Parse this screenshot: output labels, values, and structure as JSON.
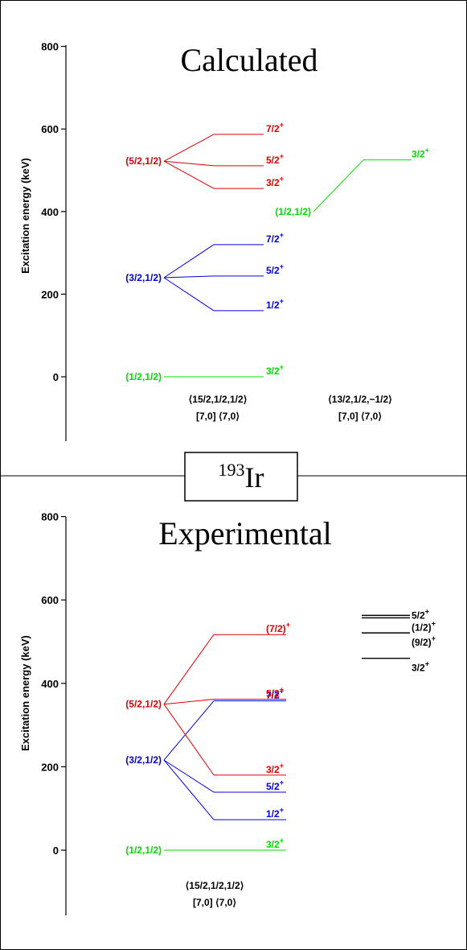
{
  "nucleus": {
    "mass": "193",
    "symbol": "Ir"
  },
  "colors": {
    "red": "#e00000",
    "blue": "#0000e0",
    "green": "#00dd00",
    "black": "#000000"
  },
  "panels": [
    {
      "id": "calculated",
      "title": "Calculated",
      "ylabel": "Excitation energy (keV)",
      "ticks": [
        "0",
        "200",
        "400",
        "600",
        "800"
      ],
      "chart_data": {
        "type": "level-scheme",
        "ylim": [
          -150,
          800
        ],
        "groups": [
          {
            "label": "(1/2,1/2)",
            "color": "green",
            "origin_keV": 0,
            "column": 1,
            "levels": [
              {
                "keV": 0,
                "label": "3/2",
                "sup": "+"
              }
            ]
          },
          {
            "label": "(3/2,1/2)",
            "color": "blue",
            "origin_keV": 240,
            "column": 1,
            "levels": [
              {
                "keV": 160,
                "label": "1/2",
                "sup": "+"
              },
              {
                "keV": 244,
                "label": "5/2",
                "sup": "+"
              },
              {
                "keV": 320,
                "label": "7/2",
                "sup": "+"
              }
            ]
          },
          {
            "label": "(5/2,1/2)",
            "color": "red",
            "origin_keV": 522,
            "column": 1,
            "levels": [
              {
                "keV": 456,
                "label": "3/2",
                "sup": "+"
              },
              {
                "keV": 511,
                "label": "5/2",
                "sup": "+"
              },
              {
                "keV": 587,
                "label": "7/2",
                "sup": "+"
              }
            ]
          },
          {
            "label": "(1/2,1/2)",
            "color": "green",
            "origin_keV": 400,
            "column": 2,
            "levels": [
              {
                "keV": 525,
                "label": "3/2",
                "sup": "+"
              }
            ]
          }
        ],
        "bands": [
          {
            "line1": "⟨15/2,1/2,1/2⟩",
            "line2": "[7,0] ⟨7,0⟩",
            "column": 1
          },
          {
            "line1": "⟨13/2,1/2,−1/2⟩",
            "line2": "[7,0] ⟨7,0⟩",
            "column": 2
          }
        ],
        "extra_levels": []
      }
    },
    {
      "id": "experimental",
      "title": "Experimental",
      "ylabel": "Excitation energy (keV)",
      "ticks": [
        "0",
        "200",
        "400",
        "600",
        "800"
      ],
      "chart_data": {
        "type": "level-scheme",
        "ylim": [
          -150,
          800
        ],
        "groups": [
          {
            "label": "(1/2,1/2)",
            "color": "green",
            "origin_keV": 0,
            "column": 1,
            "levels": [
              {
                "keV": 0,
                "label": "3/2",
                "sup": "+"
              }
            ]
          },
          {
            "label": "(3/2,1/2)",
            "color": "blue",
            "origin_keV": 216,
            "column": 1,
            "levels": [
              {
                "keV": 73,
                "label": "1/2",
                "sup": "+"
              },
              {
                "keV": 139,
                "label": "5/2",
                "sup": "+"
              },
              {
                "keV": 358,
                "label": "7/2",
                "sup": "+"
              }
            ]
          },
          {
            "label": "(5/2,1/2)",
            "color": "red",
            "origin_keV": 350,
            "column": 1,
            "levels": [
              {
                "keV": 180,
                "label": "3/2",
                "sup": "+"
              },
              {
                "keV": 362,
                "label": "5/2",
                "sup": "+"
              },
              {
                "keV": 517,
                "label": "(7/2)",
                "sup": "+"
              }
            ]
          }
        ],
        "bands": [
          {
            "line1": "⟨15/2,1/2,1/2⟩",
            "line2": "[7,0] ⟨7,0⟩",
            "column": 1
          }
        ],
        "extra_levels": [
          {
            "keV": 460,
            "label": "3/2",
            "sup": "+"
          },
          {
            "keV": 521,
            "label": "(9/2)",
            "sup": "+"
          },
          {
            "keV": 557,
            "label": "(1/2)",
            "sup": "+"
          },
          {
            "keV": 563,
            "label": "5/2",
            "sup": "+"
          }
        ]
      }
    }
  ]
}
